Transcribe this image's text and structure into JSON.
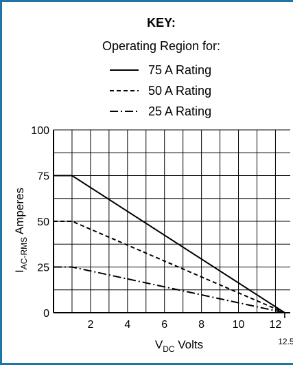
{
  "chart_data": {
    "type": "line",
    "key_title": "KEY:",
    "key_subtitle": "Operating Region for:",
    "xlabel": {
      "main": "V",
      "sub": "DC",
      "rest": " Volts"
    },
    "ylabel": {
      "main": "I",
      "sub": "AC-RMS",
      "rest": " Amperes"
    },
    "xlim": [
      0,
      12.8
    ],
    "ylim": [
      0,
      100
    ],
    "x_ticks": [
      "2",
      "4",
      "6",
      "8",
      "10",
      "12"
    ],
    "x_tick_values": [
      2,
      4,
      6,
      8,
      10,
      12
    ],
    "x_extra_tick": {
      "label": "12.5",
      "value": 12.5
    },
    "y_ticks": [
      "0",
      "25",
      "50",
      "75",
      "100"
    ],
    "y_tick_values": [
      0,
      25,
      50,
      75,
      100
    ],
    "grid": true,
    "series": [
      {
        "name": "75 A Rating",
        "style": "solid",
        "points": [
          [
            0,
            75
          ],
          [
            1,
            75
          ],
          [
            12.5,
            0
          ]
        ]
      },
      {
        "name": "50 A Rating",
        "style": "dashed",
        "points": [
          [
            0,
            50
          ],
          [
            1,
            50
          ],
          [
            12.5,
            0
          ]
        ]
      },
      {
        "name": "25 A Rating",
        "style": "dashdot",
        "points": [
          [
            0,
            25
          ],
          [
            1,
            25
          ],
          [
            12.5,
            0
          ]
        ]
      }
    ]
  },
  "colors": {
    "border": "#1f74a8",
    "line": "#000000"
  }
}
